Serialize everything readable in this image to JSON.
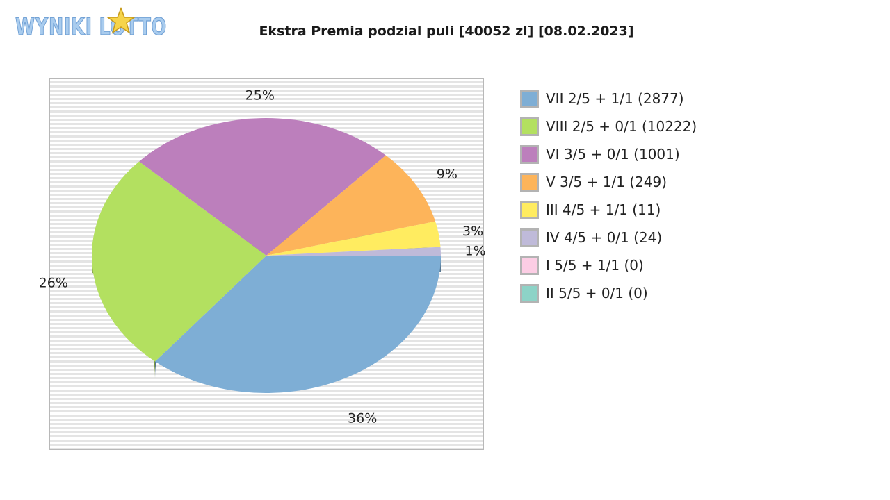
{
  "logo": {
    "brand_text": "WYNIKI LOTTO"
  },
  "chart_data": {
    "type": "pie",
    "title": "Ekstra Premia podzial puli [40052 zl] [08.02.2023]",
    "slices": [
      {
        "label": "VII 2/5 + 1/1 (2877)",
        "percent": 36,
        "value": 2877,
        "color": "#7eaed5"
      },
      {
        "label": "VIII 2/5 + 0/1 (10222)",
        "percent": 26,
        "value": 10222,
        "color": "#b3e060"
      },
      {
        "label": "VI 3/5 + 0/1 (1001)",
        "percent": 25,
        "value": 1001,
        "color": "#bc7fbc"
      },
      {
        "label": "V 3/5 + 1/1 (249)",
        "percent": 9,
        "value": 249,
        "color": "#fdb45a"
      },
      {
        "label": "III 4/5 + 1/1 (11)",
        "percent": 3,
        "value": 11,
        "color": "#ffec60"
      },
      {
        "label": "IV 4/5 + 0/1 (24)",
        "percent": 1,
        "value": 24,
        "color": "#bfbad9"
      },
      {
        "label": "I 5/5 + 1/1 (0)",
        "percent": 0,
        "value": 0,
        "color": "#fccde4"
      },
      {
        "label": "II 5/5 + 0/1 (0)",
        "percent": 0,
        "value": 0,
        "color": "#8dd3c7"
      }
    ],
    "legend_position": "right",
    "background": "horizontal-stripes"
  }
}
